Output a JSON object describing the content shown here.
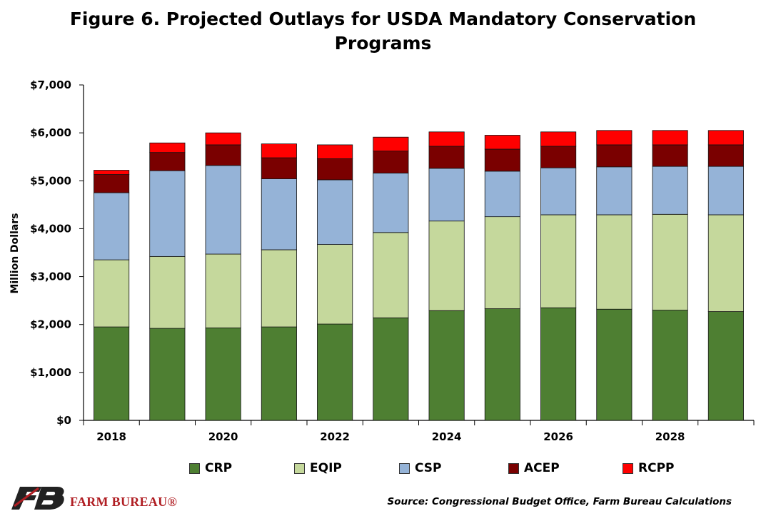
{
  "title_line1": "Figure 6. Projected Outlays for USDA Mandatory Conservation",
  "title_line2": "Programs",
  "source": "Source: Congressional Budget Office, Farm Bureau Calculations",
  "logo_text": "FARM BUREAU®",
  "chart_data": {
    "type": "bar",
    "stacked": true,
    "ylabel": "Million Dollars",
    "ylim": [
      0,
      7000
    ],
    "ytick_labels": [
      "$0",
      "$1,000",
      "$2,000",
      "$3,000",
      "$4,000",
      "$5,000",
      "$6,000",
      "$7,000"
    ],
    "ytick_values": [
      0,
      1000,
      2000,
      3000,
      4000,
      5000,
      6000,
      7000
    ],
    "categories": [
      "2018",
      "2019",
      "2020",
      "2021",
      "2022",
      "2023",
      "2024",
      "2025",
      "2026",
      "2027",
      "2028",
      "2029"
    ],
    "xtick_labels_shown": [
      "2018",
      "",
      "2020",
      "",
      "2022",
      "",
      "2024",
      "",
      "2026",
      "",
      "2028",
      ""
    ],
    "legend_position": "bottom",
    "series": [
      {
        "name": "CRP",
        "color": "#4e7f32",
        "values": [
          1950,
          1920,
          1930,
          1950,
          2010,
          2140,
          2290,
          2330,
          2350,
          2320,
          2300,
          2270
        ]
      },
      {
        "name": "EQIP",
        "color": "#c5d89c",
        "values": [
          1400,
          1500,
          1540,
          1610,
          1660,
          1780,
          1870,
          1920,
          1940,
          1970,
          2000,
          2020
        ]
      },
      {
        "name": "CSP",
        "color": "#95b3d7",
        "values": [
          1400,
          1790,
          1850,
          1480,
          1350,
          1240,
          1100,
          950,
          980,
          1000,
          1000,
          1010
        ]
      },
      {
        "name": "ACEP",
        "color": "#7a0000",
        "values": [
          380,
          380,
          430,
          440,
          440,
          460,
          460,
          460,
          450,
          460,
          450,
          450
        ]
      },
      {
        "name": "RCPP",
        "color": "#ff0000",
        "values": [
          90,
          200,
          250,
          290,
          290,
          290,
          300,
          290,
          300,
          300,
          300,
          300
        ]
      }
    ]
  }
}
